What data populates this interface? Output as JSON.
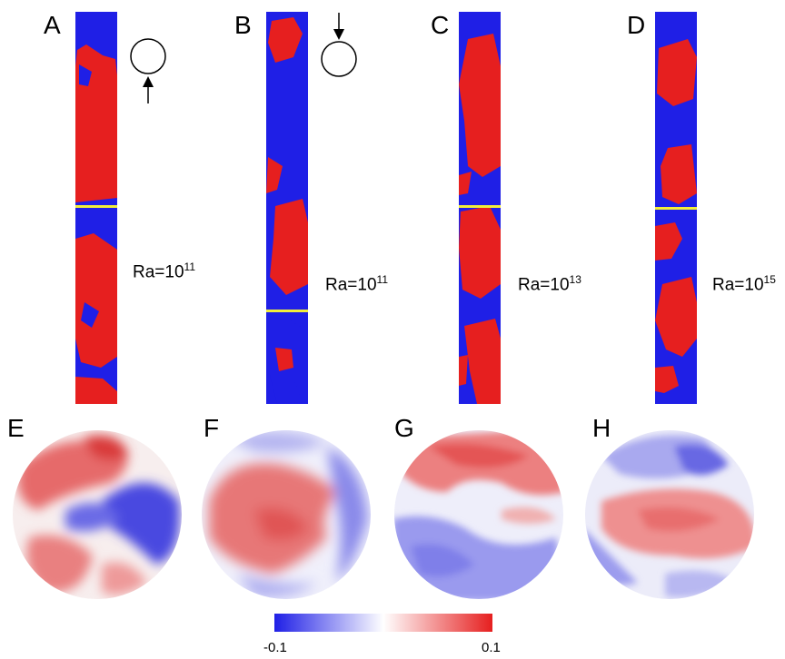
{
  "panels": {
    "A": {
      "letter": "A",
      "ra_base": "Ra=10",
      "ra_exp": "11"
    },
    "B": {
      "letter": "B",
      "ra_base": "Ra=10",
      "ra_exp": "11"
    },
    "C": {
      "letter": "C",
      "ra_base": "Ra=10",
      "ra_exp": "13"
    },
    "D": {
      "letter": "D",
      "ra_base": "Ra=10",
      "ra_exp": "15"
    },
    "E": {
      "letter": "E"
    },
    "F": {
      "letter": "F"
    },
    "G": {
      "letter": "G"
    },
    "H": {
      "letter": "H"
    }
  },
  "colorbar": {
    "min_label": "-0.1",
    "max_label": "0.1",
    "colors": [
      "#1f1fe6",
      "#ffffff",
      "#e61f1f"
    ]
  },
  "colors": {
    "positive": "#e61f1f",
    "negative": "#1f1fe6",
    "section_marker": "#f2ee3a"
  },
  "icons": {
    "probe_up": "circle-with-up-arrow-icon",
    "probe_down": "circle-with-down-arrow-icon"
  }
}
